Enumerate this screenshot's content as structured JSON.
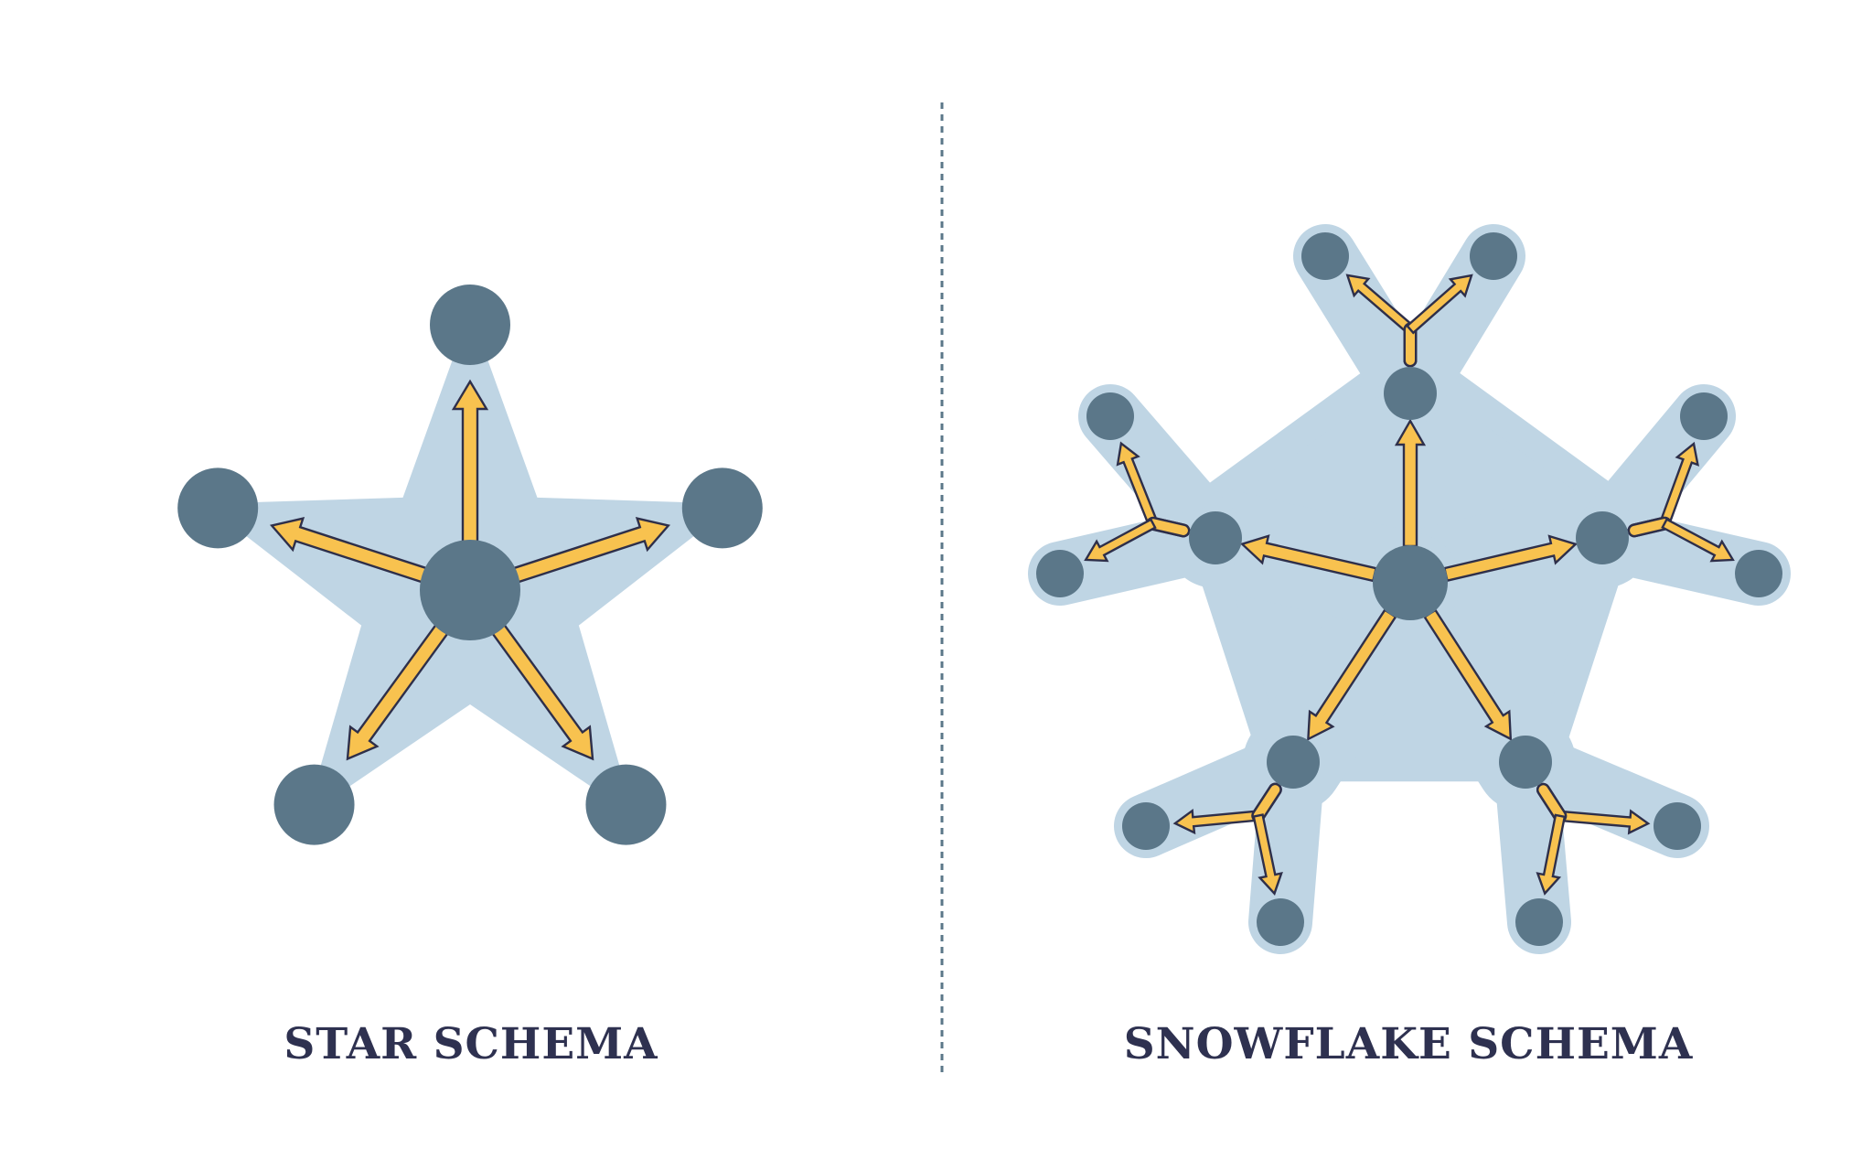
{
  "colors": {
    "background": "#ffffff",
    "region": "#bfd5e4",
    "node": "#5b7789",
    "arrow_fill": "#f8c24f",
    "arrow_stroke": "#2e2f4a",
    "divider": "#5b7789",
    "caption": "#2e3150"
  },
  "star_schema": {
    "title": "STAR SCHEMA",
    "center_nodes": 1,
    "dimension_nodes": 5
  },
  "snowflake_schema": {
    "title": "SNOWFLAKE SCHEMA",
    "center_nodes": 1,
    "dimension_nodes": 5,
    "sub_dimension_nodes_per_dimension": 2
  }
}
